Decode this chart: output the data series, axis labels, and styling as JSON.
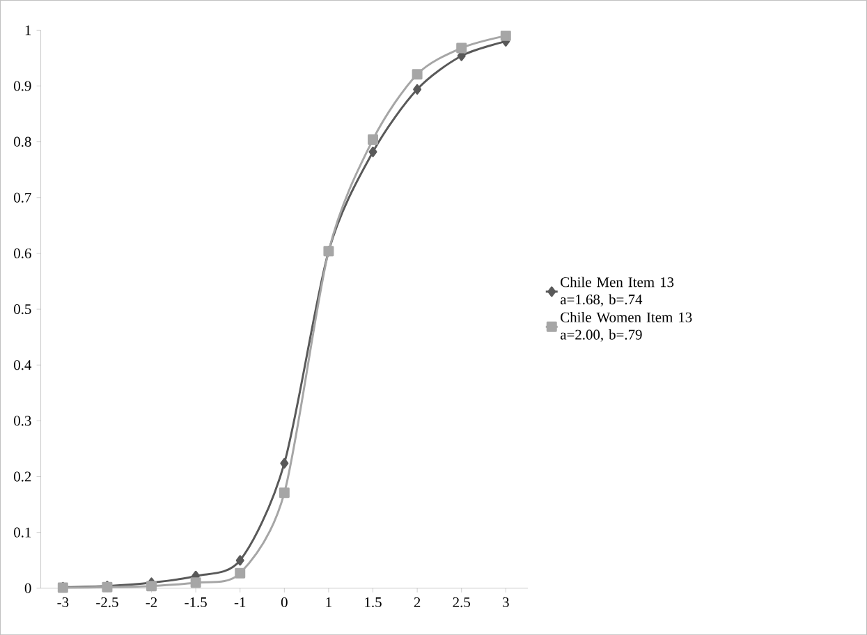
{
  "chart_data": {
    "type": "line",
    "categories": [
      "-3",
      "-2.5",
      "-2",
      "-1.5",
      "-1",
      "0",
      "1",
      "1.5",
      "2",
      "2.5",
      "3"
    ],
    "series": [
      {
        "name": "Chile Men Item 13 a=1.68, b=.74",
        "color": "#595959",
        "marker": "diamond",
        "values": [
          0.002,
          0.004,
          0.01,
          0.022,
          0.05,
          0.224,
          0.604,
          0.782,
          0.894,
          0.954,
          0.98
        ]
      },
      {
        "name": "Chile Women Item 13 a=2.00, b=.79",
        "color": "#a6a6a6",
        "marker": "square",
        "values": [
          0.001,
          0.002,
          0.004,
          0.01,
          0.027,
          0.171,
          0.604,
          0.804,
          0.921,
          0.968,
          0.99
        ]
      }
    ],
    "ylim": [
      0,
      1
    ],
    "yticks": [
      0,
      0.1,
      0.2,
      0.3,
      0.4,
      0.5,
      0.6,
      0.7,
      0.8,
      0.9,
      1
    ],
    "grid": false,
    "legend": "right",
    "line_style": "solid"
  }
}
